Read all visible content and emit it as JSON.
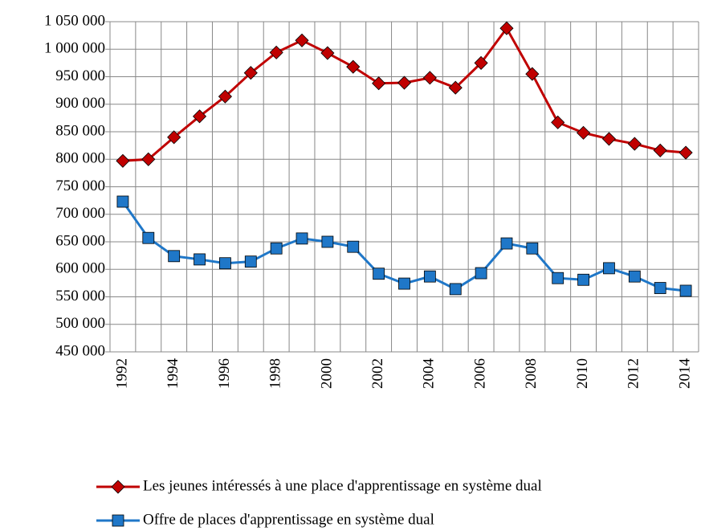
{
  "chart_data": {
    "type": "line",
    "categories": [
      "1992",
      null,
      "1994",
      null,
      "1996",
      null,
      "1998",
      null,
      "2000",
      null,
      "2002",
      null,
      "2004",
      null,
      "2006",
      null,
      "2008",
      null,
      "2010",
      null,
      "2012",
      null,
      "2014"
    ],
    "series": [
      {
        "name": "Les jeunes intéressés à une place d'apprentissage en système dual",
        "color": "#c00000",
        "marker": "diamond",
        "values": [
          797000,
          800000,
          840000,
          878000,
          914000,
          957000,
          994000,
          1016000,
          993000,
          968000,
          938000,
          939000,
          948000,
          930000,
          975000,
          1038000,
          955000,
          867000,
          848000,
          837000,
          828000,
          816000,
          812000
        ]
      },
      {
        "name": "Offre de places d'apprentissage en système dual",
        "color": "#1f77c8",
        "marker": "square",
        "values": [
          723000,
          657000,
          624000,
          618000,
          611000,
          614000,
          638000,
          656000,
          650000,
          641000,
          592000,
          574000,
          587000,
          564000,
          593000,
          647000,
          638000,
          584000,
          581000,
          602000,
          587000,
          566000,
          561000
        ]
      }
    ],
    "ylim": [
      450000,
      1050000
    ],
    "yticks": [
      {
        "value": 450000,
        "label": "450 000"
      },
      {
        "value": 500000,
        "label": "500 000"
      },
      {
        "value": 550000,
        "label": "550 000"
      },
      {
        "value": 600000,
        "label": "600 000"
      },
      {
        "value": 650000,
        "label": "650 000"
      },
      {
        "value": 700000,
        "label": "700 000"
      },
      {
        "value": 750000,
        "label": "750 000"
      },
      {
        "value": 800000,
        "label": "800 000"
      },
      {
        "value": 850000,
        "label": "850 000"
      },
      {
        "value": 900000,
        "label": "900 000"
      },
      {
        "value": 950000,
        "label": "950 000"
      },
      {
        "value": 1000000,
        "label": "1 000 000"
      },
      {
        "value": 1050000,
        "label": "1 050 000"
      }
    ],
    "grid": true,
    "legend": "bottom"
  }
}
